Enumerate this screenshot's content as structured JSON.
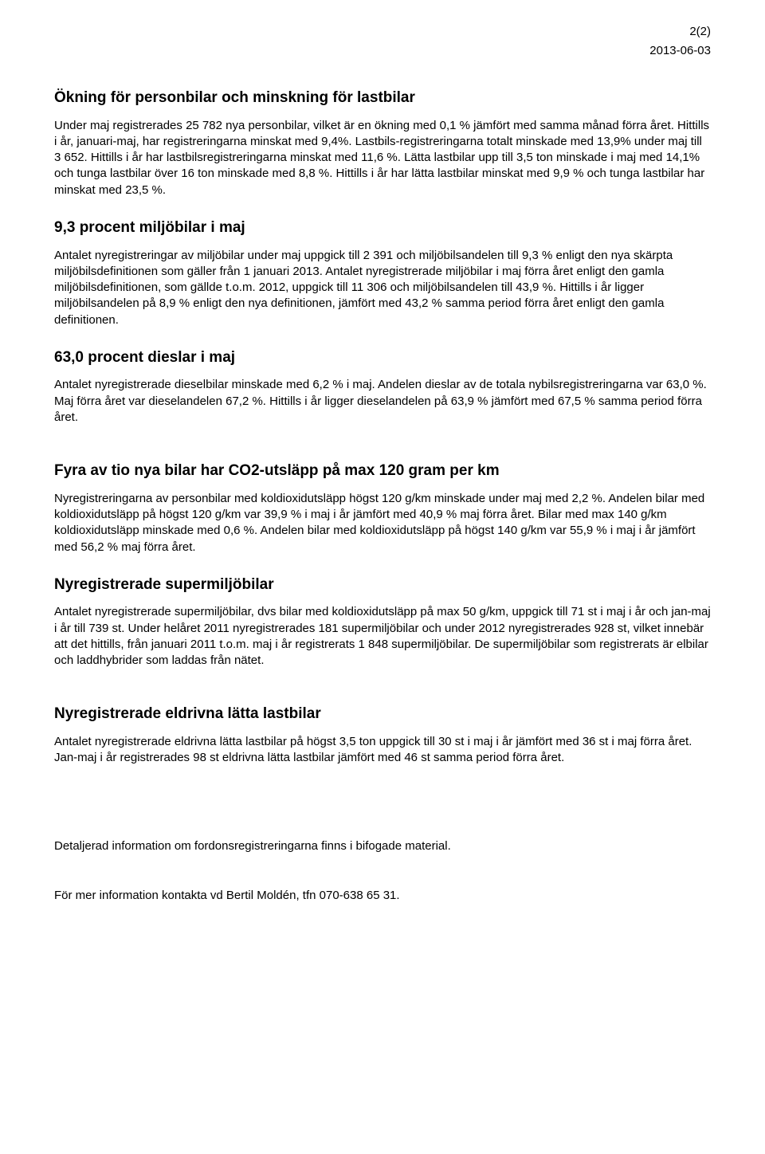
{
  "meta": {
    "page_indicator": "2(2)",
    "date": "2013-06-03"
  },
  "sections": {
    "s1": {
      "heading": "Ökning för personbilar och minskning för lastbilar",
      "body": "Under maj registrerades 25 782 nya personbilar, vilket är en ökning med 0,1 % jämfört med samma månad förra året. Hittills i år, januari-maj, har registreringarna minskat med 9,4%. Lastbils-registreringarna totalt minskade med 13,9% under maj till 3 652. Hittills i år har lastbilsregistreringarna minskat med 11,6 %. Lätta lastbilar upp till 3,5 ton minskade i maj med 14,1% och tunga lastbilar över 16 ton minskade med 8,8 %. Hittills i år har lätta lastbilar minskat med 9,9 % och tunga lastbilar har minskat med 23,5 %."
    },
    "s2": {
      "heading": "9,3 procent miljöbilar i maj",
      "body": "Antalet nyregistreringar av miljöbilar under maj uppgick till 2 391 och miljöbilsandelen till 9,3 % enligt den nya skärpta miljöbilsdefinitionen som gäller från 1 januari 2013. Antalet nyregistrerade miljöbilar i maj förra året enligt den gamla miljöbilsdefinitionen, som gällde t.o.m. 2012, uppgick till 11 306 och miljöbilsandelen till 43,9 %. Hittills i år ligger miljöbilsandelen på 8,9 % enligt den nya definitionen, jämfört med 43,2 % samma period förra året enligt den gamla definitionen."
    },
    "s3": {
      "heading": "63,0 procent dieslar i maj",
      "body": "Antalet nyregistrerade dieselbilar minskade med 6,2 % i maj. Andelen dieslar av de totala nybilsregistreringarna var 63,0 %. Maj förra året var dieselandelen 67,2 %. Hittills i år ligger dieselandelen på 63,9 % jämfört med 67,5 % samma period förra året."
    },
    "s4": {
      "heading": "Fyra av tio nya bilar har CO2-utsläpp på max 120 gram per km",
      "body": "Nyregistreringarna av personbilar med koldioxidutsläpp högst 120 g/km minskade under maj med 2,2 %. Andelen bilar med koldioxidutsläpp på högst 120 g/km var 39,9 % i maj i år jämfört med 40,9 % maj förra året. Bilar med max 140 g/km koldioxidutsläpp minskade med 0,6 %. Andelen bilar med koldioxidutsläpp på högst 140 g/km var 55,9 % i maj i år jämfört med 56,2 % maj förra året."
    },
    "s5": {
      "heading": "Nyregistrerade supermiljöbilar",
      "body": "Antalet nyregistrerade supermiljöbilar, dvs bilar med koldioxidutsläpp på max 50 g/km, uppgick till 71 st i maj i år och jan-maj i år till 739 st. Under helåret 2011 nyregistrerades 181 supermiljöbilar och under 2012 nyregistrerades 928 st, vilket innebär att det hittills, från januari 2011 t.o.m. maj i år registrerats 1 848 supermiljöbilar. De supermiljöbilar som registrerats är elbilar och laddhybrider som laddas från nätet."
    },
    "s6": {
      "heading": "Nyregistrerade eldrivna lätta lastbilar",
      "body": "Antalet nyregistrerade eldrivna lätta lastbilar på högst 3,5 ton uppgick till 30 st i maj i år jämfört med 36 st i maj förra året. Jan-maj i år registrerades 98 st eldrivna lätta lastbilar jämfört med 46 st samma period förra året."
    }
  },
  "footer": {
    "detail": "Detaljerad information om fordonsregistreringarna finns i bifogade material.",
    "contact": "För mer information kontakta vd Bertil Moldén, tfn 070-638 65 31."
  }
}
